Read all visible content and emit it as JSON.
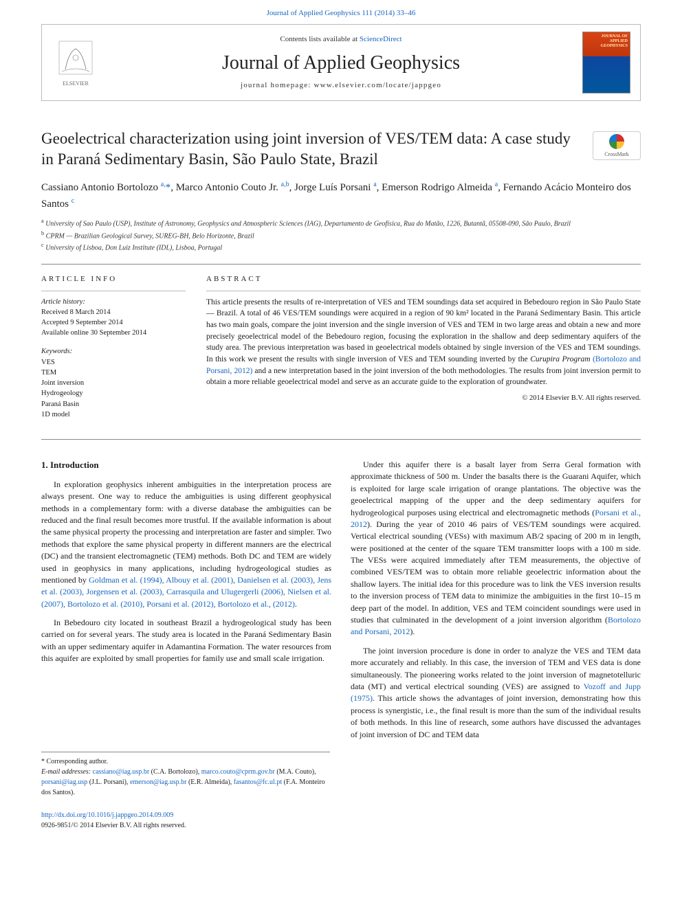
{
  "top_link": {
    "text": "Journal of Applied Geophysics 111 (2014) 33–46",
    "color": "#1565c0"
  },
  "header": {
    "contents_prefix": "Contents lists available at ",
    "contents_link": "ScienceDirect",
    "journal_title": "Journal of Applied Geophysics",
    "homepage_label": "journal homepage: www.elsevier.com/locate/jappgeo",
    "publisher_name": "ELSEVIER",
    "cover_title_line1": "JOURNAL OF",
    "cover_title_line2": "APPLIED",
    "cover_title_line3": "GEOPHYSICS"
  },
  "article": {
    "title": "Geoelectrical characterization using joint inversion of VES/TEM data: A case study in Paraná Sedimentary Basin, São Paulo State, Brazil",
    "crossmark_label": "CrossMark",
    "authors_html": "Cassiano Antonio Bortolozo <sup>a,</sup><a>*</a>, Marco Antonio Couto Jr. <sup>a,b</sup>, Jorge Luís Porsani <sup>a</sup>, Emerson Rodrigo Almeida <sup>a</sup>, Fernando Acácio Monteiro dos Santos <sup>c</sup>",
    "affiliations": [
      {
        "sup": "a",
        "text": "University of Sao Paulo (USP), Institute of Astronomy, Geophysics and Atmospheric Sciences (IAG), Departamento de Geofísica, Rua do Matão, 1226, Butantã, 05508-090, São Paulo, Brazil"
      },
      {
        "sup": "b",
        "text": "CPRM — Brazilian Geological Survey, SUREG-BH, Belo Horizonte, Brazil"
      },
      {
        "sup": "c",
        "text": "University of Lisboa, Don Luiz Institute (IDL), Lisboa, Portugal"
      }
    ]
  },
  "info": {
    "head": "article info",
    "history_label": "Article history:",
    "history": [
      "Received 8 March 2014",
      "Accepted 9 September 2014",
      "Available online 30 September 2014"
    ],
    "keywords_label": "Keywords:",
    "keywords": [
      "VES",
      "TEM",
      "Joint inversion",
      "Hydrogeology",
      "Paraná Basin",
      "1D model"
    ]
  },
  "abstract": {
    "head": "abstract",
    "text_pre": "This article presents the results of re-interpretation of VES and TEM soundings data set acquired in Bebedouro region in São Paulo State — Brazil. A total of 46 VES/TEM soundings were acquired in a region of 90 km² located in the Paraná Sedimentary Basin. This article has two main goals, compare the joint inversion and the single inversion of VES and TEM in two large areas and obtain a new and more precisely geoelectrical model of the Bebedouro region, focusing the exploration in the shallow and deep sedimentary aquifers of the study area. The previous interpretation was based in geoelectrical models obtained by single inversion of the VES and TEM soundings. In this work we present the results with single inversion of VES and TEM sounding inverted by the ",
    "ref1_italic": "Curupira Program ",
    "ref1_link": "(Bortolozo and Porsani, 2012)",
    "text_post": " and a new interpretation based in the joint inversion of the both methodologies. The results from joint inversion permit to obtain a more reliable geoelectrical model and serve as an accurate guide to the exploration of groundwater.",
    "copyright": "© 2014 Elsevier B.V. All rights reserved."
  },
  "body": {
    "section1_title": "1. Introduction",
    "p1_a": "In exploration geophysics inherent ambiguities in the interpretation process are always present. One way to reduce the ambiguities is using different geophysical methods in a complementary form: with a diverse database the ambiguities can be reduced and the final result becomes more trustful. If the available information is about the same physical property the processing and interpretation are faster and simpler. Two methods that explore the same physical property in different manners are the electrical (DC) and the transient electromagnetic (TEM) methods. Both DC and TEM are widely used in geophysics in many applications, including hydrogeological studies as mentioned by ",
    "p1_refs": "Goldman et al. (1994), Albouy et al. (2001), Danielsen et al. (2003), Jens et al. (2003), Jorgensen et al. (2003), Carrasquila and Ulugergerli (2006), Nielsen et al. (2007), Bortolozo et al. (2010), Porsani et al. (2012), Bortolozo et al., (2012)",
    "p1_b": ".",
    "p2": "In Bebedouro city located in southeast Brazil a hydrogeological study has been carried on for several years. The study area is located in the Paraná Sedimentary Basin with an upper sedimentary aquifer in Adamantina Formation. The water resources from this aquifer are exploited by small properties for family use and small scale irrigation.",
    "p3_a": "Under this aquifer there is a basalt layer from Serra Geral formation with approximate thickness of 500 m. Under the basalts there is the Guarani Aquifer, which is exploited for large scale irrigation of orange plantations. The objective was the geoelectrical mapping of the upper and the deep sedimentary aquifers for hydrogeological purposes using electrical and electromagnetic methods (",
    "p3_ref1": "Porsani et al., 2012",
    "p3_b": "). During the year of 2010 46 pairs of VES/TEM soundings were acquired. Vertical electrical sounding (VESs) with maximum AB/2 spacing of 200 m in length, were positioned at the center of the square TEM transmitter loops with a 100 m side. The VESs were acquired immediately after TEM measurements, the objective of combined VES/TEM was to obtain more reliable geoelectric information about the shallow layers. The initial idea for this procedure was to link the VES inversion results to the inversion process of TEM data to minimize the ambiguities in the first 10–15 m deep part of the model. In addition, VES and TEM coincident soundings were used in studies that culminated in the development of a joint inversion algorithm (",
    "p3_ref2": "Bortolozo and Porsani, 2012",
    "p3_c": ").",
    "p4_a": "The joint inversion procedure is done in order to analyze the VES and TEM data more accurately and reliably. In this case, the inversion of TEM and VES data is done simultaneously. The pioneering works related to the joint inversion of magnetotelluric data (MT) and vertical electrical sounding (VES) are assigned to ",
    "p4_ref1": "Vozoff and Jupp (1975)",
    "p4_b": ". This article shows the advantages of joint inversion, demonstrating how this process is synergistic, i.e., the final result is more than the sum of the individual results of both methods. In this line of research, some authors have discussed the advantages of joint inversion of DC and TEM data"
  },
  "footnote": {
    "corr_label": "* Corresponding author.",
    "email_label": "E-mail addresses: ",
    "emails": [
      {
        "addr": "cassiano@iag.usp.br",
        "who": "(C.A. Bortolozo)"
      },
      {
        "addr": "marco.couto@cprm.gov.br",
        "who": "(M.A. Couto)"
      },
      {
        "addr": "porsani@iag.usp",
        "who": "(J.L. Porsani)"
      },
      {
        "addr": "emerson@iag.usp.br",
        "who": "(E.R. Almeida)"
      },
      {
        "addr": "fasantos@fc.ul.pt",
        "who": "(F.A. Monteiro dos Santos)"
      }
    ]
  },
  "bottom": {
    "doi": "http://dx.doi.org/10.1016/j.jappgeo.2014.09.009",
    "issn_line": "0926-9851/© 2014 Elsevier B.V. All rights reserved."
  },
  "colors": {
    "link": "#1565c0",
    "text": "#1a1a1a",
    "rule": "#888888"
  }
}
